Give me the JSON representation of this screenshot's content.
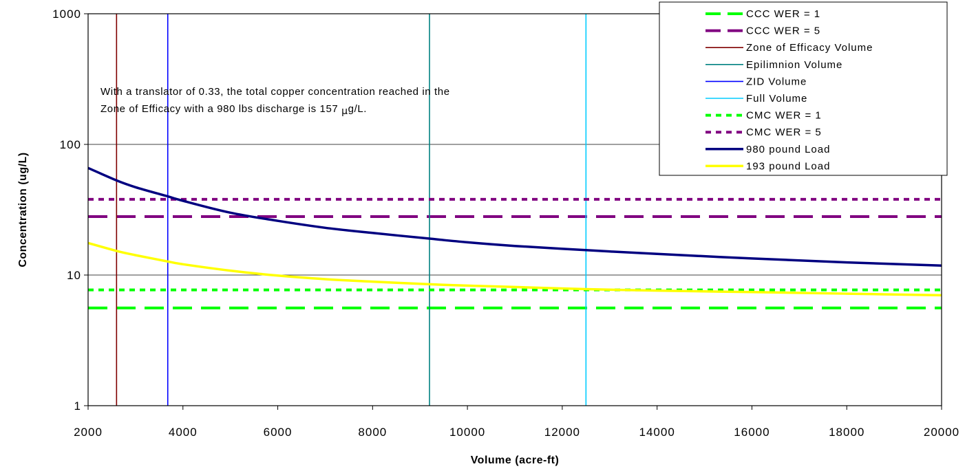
{
  "chart_data": {
    "type": "line",
    "title": "",
    "xlabel": "Volume (acre-ft)",
    "ylabel": "Concentration (ug/L)",
    "xlim": [
      2000,
      20000
    ],
    "ylim": [
      1,
      1000
    ],
    "yscale": "log",
    "x_ticks": [
      "2000",
      "4000",
      "6000",
      "8000",
      "10000",
      "12000",
      "14000",
      "16000",
      "18000",
      "20000"
    ],
    "y_ticks": [
      "1",
      "10",
      "100",
      "1000"
    ],
    "grid": "horizontal major gridlines on",
    "legend_position": "top-right",
    "annotation": {
      "line1": "With a translator of 0.33, the total copper concentration reached in the",
      "line2_prefix": "Zone of Efficacy with a 980 lbs discharge is 157 ",
      "line2_mu": "μ",
      "line2_suffix": "g/L."
    },
    "series": [
      {
        "name": "CCC WER = 1",
        "kind": "horizontal",
        "y": 5.6,
        "color": "#00ff00",
        "dash": "long-dash"
      },
      {
        "name": "CCC WER = 5",
        "kind": "horizontal",
        "y": 28,
        "color": "#800080",
        "dash": "long-dash"
      },
      {
        "name": "Zone of  Efficacy Volume",
        "kind": "vertical",
        "x": 2600,
        "color": "#800000",
        "dash": "solid"
      },
      {
        "name": "Epilimnion Volume",
        "kind": "vertical",
        "x": 9200,
        "color": "#008080",
        "dash": "solid"
      },
      {
        "name": "ZID Volume",
        "kind": "vertical",
        "x": 3680,
        "color": "#0000ff",
        "dash": "solid"
      },
      {
        "name": "Full Volume",
        "kind": "vertical",
        "x": 12500,
        "color": "#00ccff",
        "dash": "solid"
      },
      {
        "name": "CMC WER = 1",
        "kind": "horizontal",
        "y": 7.7,
        "color": "#00ff00",
        "dash": "dotted"
      },
      {
        "name": "CMC WER = 5",
        "kind": "horizontal",
        "y": 38,
        "color": "#800080",
        "dash": "dotted"
      },
      {
        "name": "980 pound Load",
        "kind": "curve",
        "color": "#000080",
        "dash": "solid",
        "x": [
          2000,
          2600,
          3000,
          3680,
          4000,
          5000,
          6000,
          7000,
          8000,
          9200,
          10000,
          11000,
          12500,
          14000,
          16000,
          18000,
          20000
        ],
        "y": [
          66,
          53,
          47,
          40,
          37,
          30,
          26,
          23,
          21,
          19,
          17.8,
          16.7,
          15.5,
          14.5,
          13.4,
          12.5,
          11.8
        ]
      },
      {
        "name": "193 pound Load",
        "kind": "curve",
        "color": "#ffff00",
        "dash": "solid",
        "x": [
          2000,
          2600,
          3000,
          3680,
          4000,
          5000,
          6000,
          7000,
          8000,
          9200,
          10000,
          11000,
          12500,
          14000,
          16000,
          18000,
          20000
        ],
        "y": [
          17.6,
          15.3,
          14.2,
          12.7,
          12.1,
          10.8,
          9.9,
          9.3,
          8.9,
          8.5,
          8.3,
          8.1,
          7.8,
          7.6,
          7.4,
          7.2,
          7.0
        ]
      }
    ]
  }
}
